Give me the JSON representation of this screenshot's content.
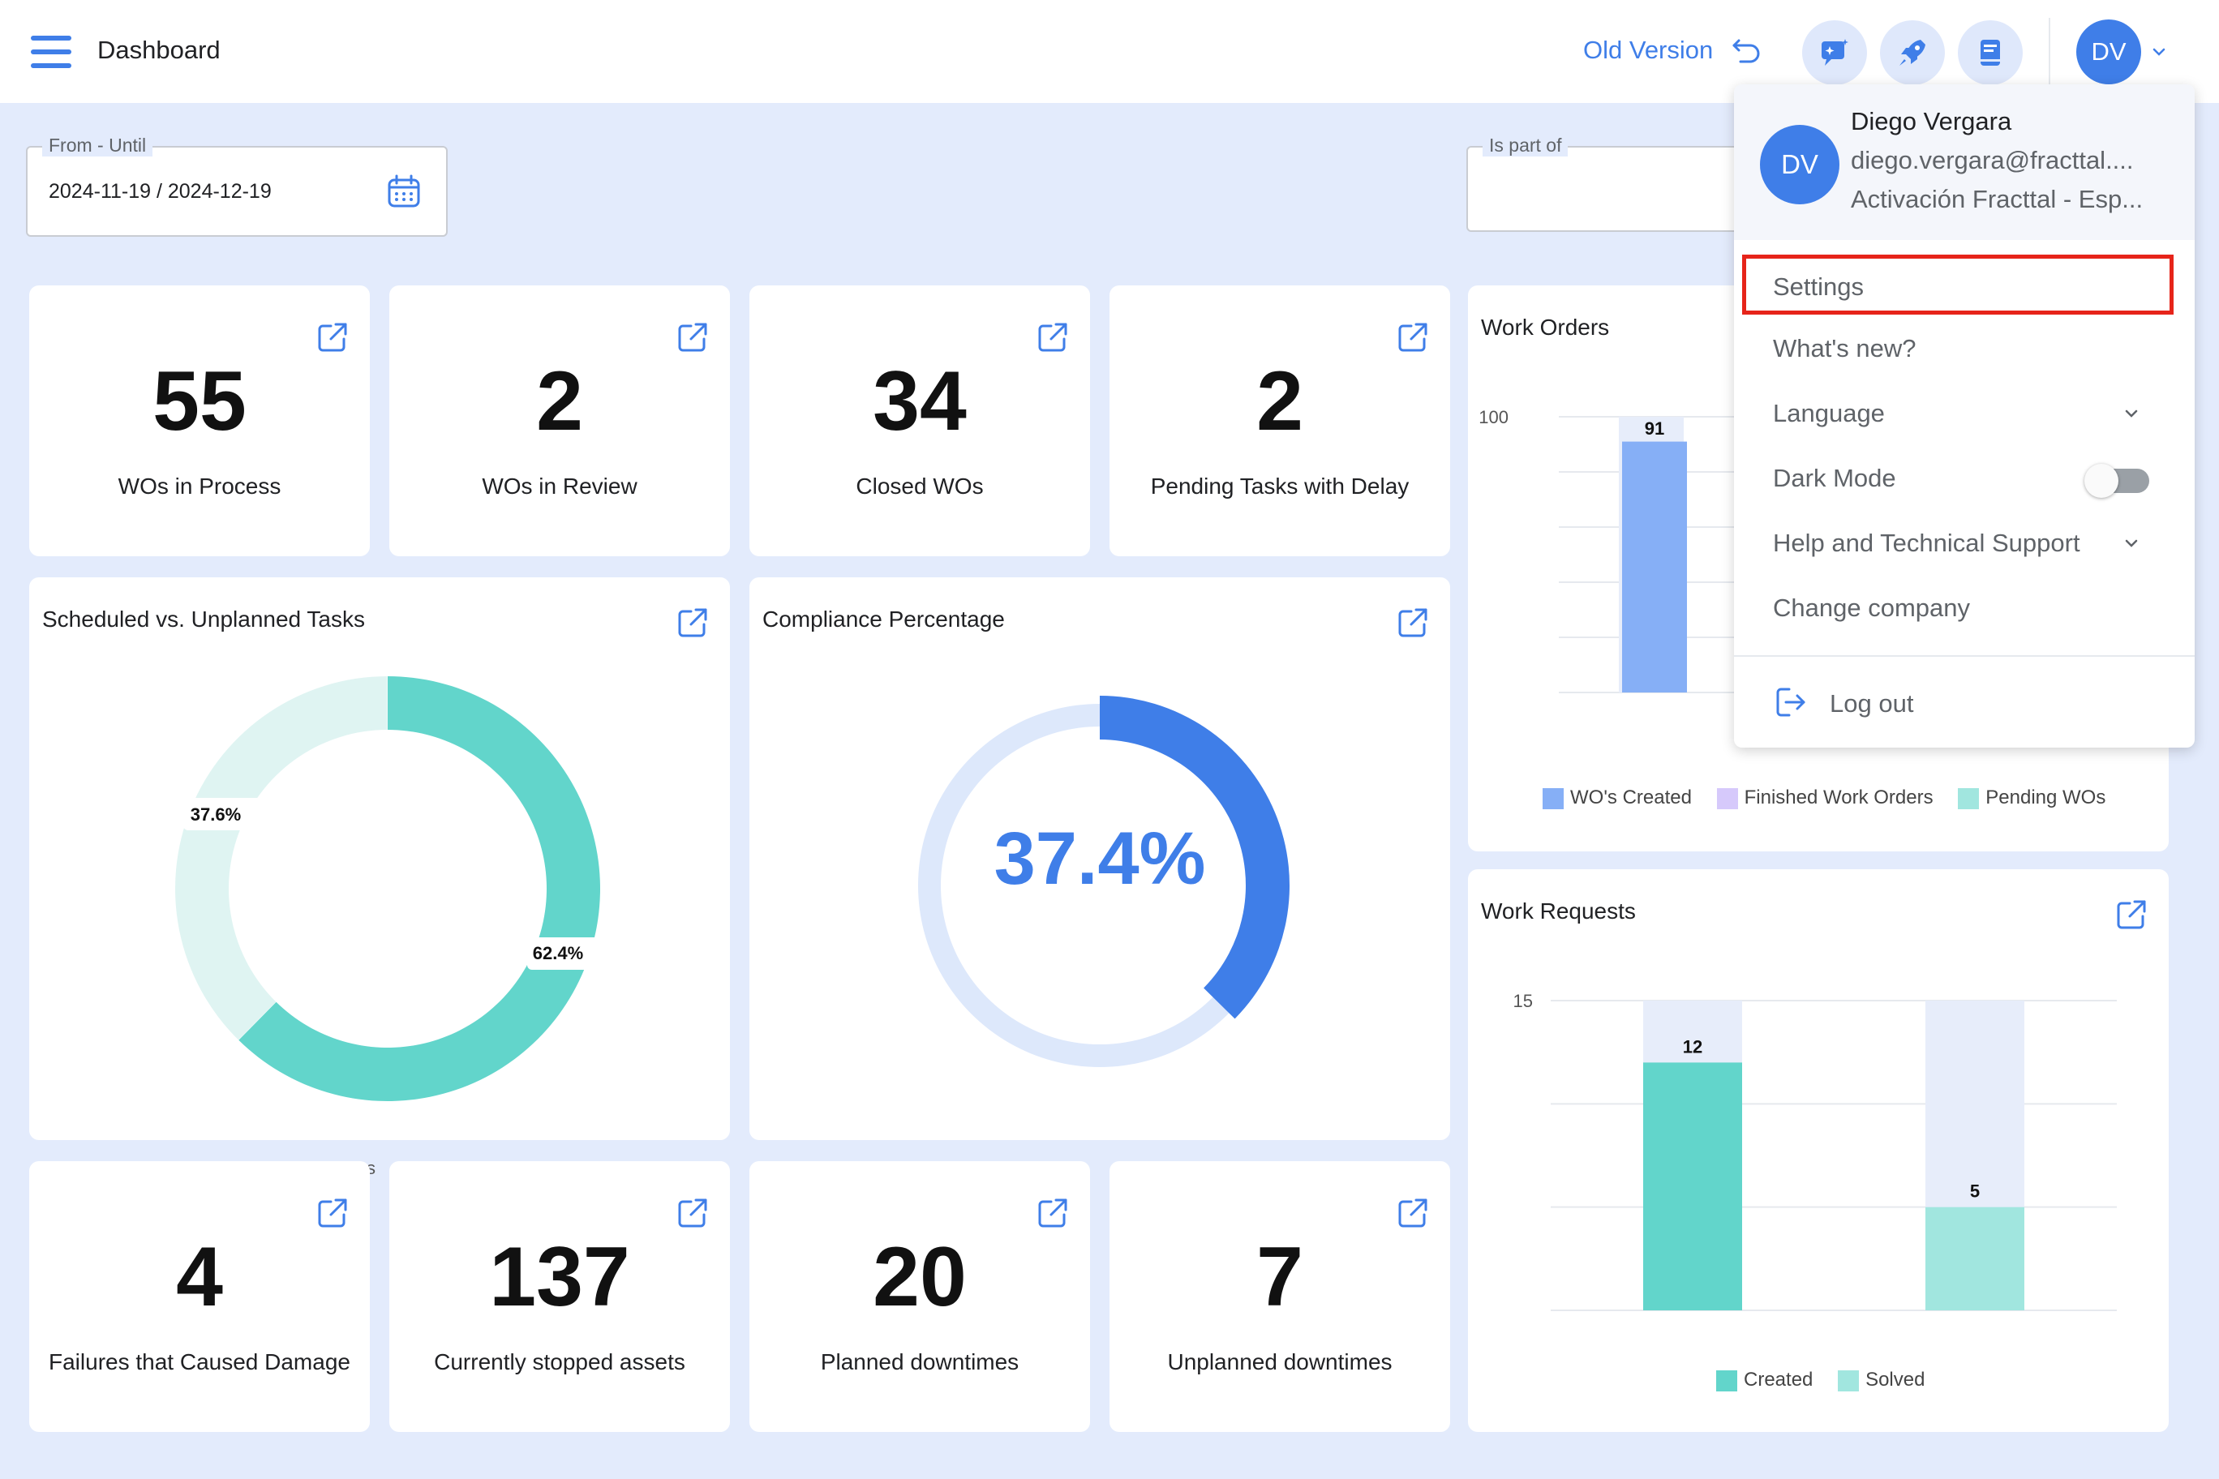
{
  "header": {
    "title": "Dashboard",
    "old_version": "Old Version",
    "user_initials": "DV"
  },
  "filters": {
    "date_range": {
      "label": "From - Until",
      "value": "2024-11-19 / 2024-12-19"
    },
    "is_part_of": {
      "label": "Is part of",
      "value": ""
    }
  },
  "kpis_top": [
    {
      "value": "55",
      "label": "WOs in Process"
    },
    {
      "value": "2",
      "label": "WOs in Review"
    },
    {
      "value": "34",
      "label": "Closed WOs"
    },
    {
      "value": "2",
      "label": "Pending Tasks with Delay"
    }
  ],
  "kpis_bottom": [
    {
      "value": "4",
      "label": "Failures that Caused Damage"
    },
    {
      "value": "137",
      "label": "Currently stopped assets"
    },
    {
      "value": "20",
      "label": "Planned downtimes"
    },
    {
      "value": "7",
      "label": "Unplanned downtimes"
    }
  ],
  "scheduled_chart": {
    "title": "Scheduled vs. Unplanned Tasks",
    "label_a": "37.6%",
    "label_b": "62.4%",
    "partial_legend": "s"
  },
  "compliance": {
    "title": "Compliance Percentage",
    "value_text": "37.4%"
  },
  "work_orders": {
    "title": "Work Orders",
    "y_tick": "100",
    "bar_label": "91",
    "legend": [
      "WO's Created",
      "Finished Work Orders",
      "Pending WOs"
    ]
  },
  "work_requests": {
    "title": "Work Requests",
    "y_tick": "15",
    "bar_label_created": "12",
    "bar_label_solved": "5",
    "legend": [
      "Created",
      "Solved"
    ]
  },
  "user_menu": {
    "initials": "DV",
    "name": "Diego Vergara",
    "email": "diego.vergara@fracttal....",
    "company": "Activación Fracttal - Esp...",
    "items": {
      "settings": "Settings",
      "whats_new": "What's new?",
      "language": "Language",
      "dark_mode": "Dark Mode",
      "help": "Help and Technical Support",
      "change_company": "Change company",
      "logout": "Log out"
    }
  },
  "colors": {
    "accent": "#3f7ee8",
    "teal": "#62d5cb",
    "teal_light": "#dff4f2",
    "teal_pale": "#a1e6df",
    "lavender": "#d6c9fb",
    "bar_blue": "#86aff6",
    "highlight": "#e6241a"
  },
  "chart_data": [
    {
      "type": "pie",
      "title": "Scheduled vs. Unplanned Tasks",
      "values": [
        62.4,
        37.6
      ],
      "labels": [
        "62.4%",
        "37.6%"
      ]
    },
    {
      "type": "pie",
      "title": "Compliance Percentage",
      "values": [
        37.4,
        62.6
      ]
    },
    {
      "type": "bar",
      "title": "Work Orders",
      "series": [
        {
          "name": "WO's Created",
          "values": [
            91
          ]
        },
        {
          "name": "Finished Work Orders",
          "values": []
        },
        {
          "name": "Pending WOs",
          "values": []
        }
      ],
      "ylim": [
        0,
        100
      ]
    },
    {
      "type": "bar",
      "title": "Work Requests",
      "categories": [
        "Created",
        "Solved"
      ],
      "values": [
        12,
        5
      ],
      "ylim": [
        0,
        15
      ]
    }
  ]
}
